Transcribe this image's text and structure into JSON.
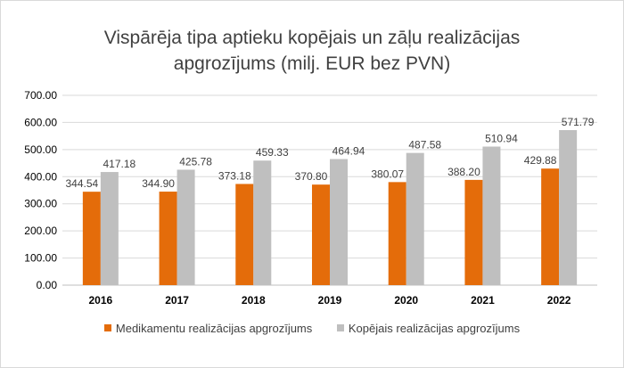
{
  "chart_data": {
    "type": "bar",
    "title_lines": [
      "Vispārēja tipa aptieku kopējais un zāļu realizācijas",
      "apgrozījums (milj. EUR bez PVN)"
    ],
    "categories": [
      "2016",
      "2017",
      "2018",
      "2019",
      "2020",
      "2021",
      "2022"
    ],
    "series": [
      {
        "name": "Medikamentu realizācijas apgrozījums",
        "color": "#e46c0a",
        "values": [
          344.54,
          344.9,
          373.18,
          370.8,
          380.07,
          388.2,
          429.88
        ],
        "labels": [
          "344.54",
          "344.90",
          "373.18",
          "370.80",
          "380.07",
          "388.20",
          "429.88"
        ]
      },
      {
        "name": "Kopējais realizācijas apgrozījums",
        "color": "#bfbfbf",
        "values": [
          417.18,
          425.78,
          459.33,
          464.94,
          487.58,
          510.94,
          571.79
        ],
        "labels": [
          "417.18",
          "425.78",
          "459.33",
          "464.94",
          "487.58",
          "510.94",
          "571.79"
        ]
      }
    ],
    "ylim": [
      0,
      700
    ],
    "yticks": [
      "0.00",
      "100.00",
      "200.00",
      "300.00",
      "400.00",
      "500.00",
      "600.00",
      "700.00"
    ],
    "grid": true,
    "legend_position": "bottom"
  }
}
